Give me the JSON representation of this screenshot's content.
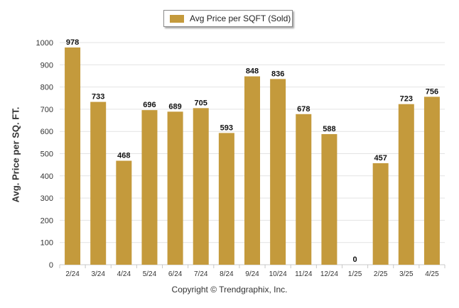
{
  "chart_data": {
    "type": "bar",
    "categories": [
      "2/24",
      "3/24",
      "4/24",
      "5/24",
      "6/24",
      "7/24",
      "8/24",
      "9/24",
      "10/24",
      "11/24",
      "12/24",
      "1/25",
      "2/25",
      "3/25",
      "4/25"
    ],
    "series": [
      {
        "name": "Avg Price per SQFT (Sold)",
        "values": [
          978,
          733,
          468,
          696,
          689,
          705,
          593,
          848,
          836,
          678,
          588,
          0,
          457,
          723,
          756
        ]
      }
    ],
    "ylabel": "Avg. Price per SQ. FT.",
    "xlabel": "",
    "ylim": [
      0,
      1000
    ],
    "yticks": [
      0,
      100,
      200,
      300,
      400,
      500,
      600,
      700,
      800,
      900,
      1000
    ],
    "grid": true,
    "legend": "top-center",
    "data_labels": true
  },
  "colors": {
    "bar": "#c49a3c",
    "grid": "#e3e3e3",
    "axis": "#c8c8c8"
  },
  "footer": {
    "copyright": "Copyright © Trendgraphix, Inc."
  }
}
